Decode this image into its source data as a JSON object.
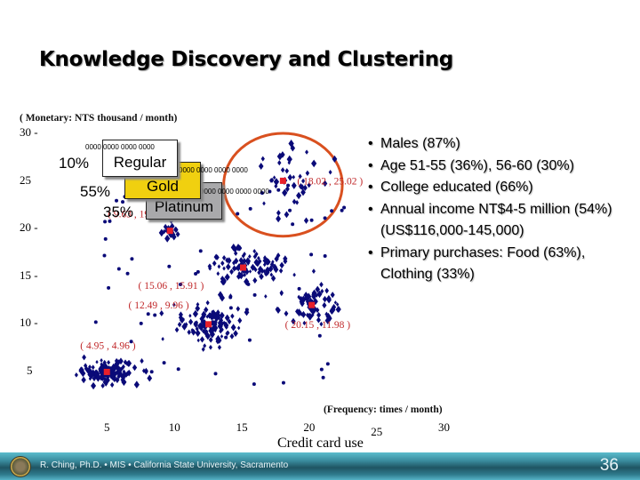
{
  "slide": {
    "title": "Knowledge Discovery and Clustering",
    "page_number": "36",
    "footer_text": "R. Ching, Ph.D. • MIS  • California State University, Sacramento"
  },
  "segments": {
    "regular": {
      "label": "Regular",
      "pct": "10%",
      "card_number": "0000 0000 0000 0000"
    },
    "gold": {
      "label": "Gold",
      "pct": "55%",
      "card_number": "0000 0000 0000 0000"
    },
    "platinum": {
      "label": "Platinum",
      "pct": "35%",
      "card_number": "0000 0000 0000 0000"
    }
  },
  "profile_bullets": [
    "Males (87%)",
    "Age 51-55 (36%), 56-60 (30%)",
    "College educated (66%)",
    "Annual income NT$4-5 million (54%) (US$116,000-145,000)",
    "Primary purchases: Food (63%), Clothing (33%)"
  ],
  "colors": {
    "points": "#0a0a78",
    "centroids": "#e8202a",
    "centroid_labels": "#c0282a",
    "highlight_circle": "#d9501f",
    "gold_card": "#f0d010",
    "platinum_card": "#a9a9ab",
    "footer": "#2f7a8c"
  },
  "chart_data": {
    "type": "scatter",
    "title": "",
    "xlabel": "(Frequency: times / month)",
    "ylabel": "( Monetary: NTS thousand / month)",
    "x_title": "Credit card use",
    "xlim": [
      2,
      31
    ],
    "ylim": [
      2,
      30.5
    ],
    "x_ticks": [
      5,
      10,
      15,
      20,
      25,
      30
    ],
    "y_ticks": [
      5,
      10,
      15,
      20,
      25,
      30
    ],
    "grid": false,
    "centroids": [
      {
        "x": 4.95,
        "y": 4.96,
        "label": "( 4.95 , 4.96 )"
      },
      {
        "x": 12.49,
        "y": 9.96,
        "label": "( 12.49 , 9.96 )"
      },
      {
        "x": 15.06,
        "y": 15.91,
        "label": "( 15.06 , 15.91 )"
      },
      {
        "x": 20.15,
        "y": 11.98,
        "label": "( 20.15 , 11.98 )"
      },
      {
        "x": 9.63,
        "y": 19.77,
        "label": "( 9.63 , 19.77 )"
      },
      {
        "x": 18.02,
        "y": 25.02,
        "label": "( 18.02 , 25.02 )"
      }
    ],
    "clusters": [
      {
        "cx": 4.95,
        "cy": 4.96,
        "sx": 1.1,
        "sy": 0.6,
        "n": 140
      },
      {
        "cx": 12.49,
        "cy": 9.96,
        "sx": 1.0,
        "sy": 1.0,
        "n": 110
      },
      {
        "cx": 15.06,
        "cy": 15.91,
        "sx": 1.6,
        "sy": 1.0,
        "n": 100
      },
      {
        "cx": 20.15,
        "cy": 11.98,
        "sx": 1.2,
        "sy": 0.9,
        "n": 70
      },
      {
        "cx": 9.63,
        "cy": 19.77,
        "sx": 0.35,
        "sy": 0.35,
        "n": 30
      },
      {
        "cx": 18.02,
        "cy": 25.02,
        "sx": 1.5,
        "sy": 2.0,
        "n": 45
      }
    ],
    "highlight": {
      "cx": 18.02,
      "cy": 24.6,
      "rx": 4.4,
      "ry": 5.4,
      "note": "circled Platinum cluster"
    }
  }
}
